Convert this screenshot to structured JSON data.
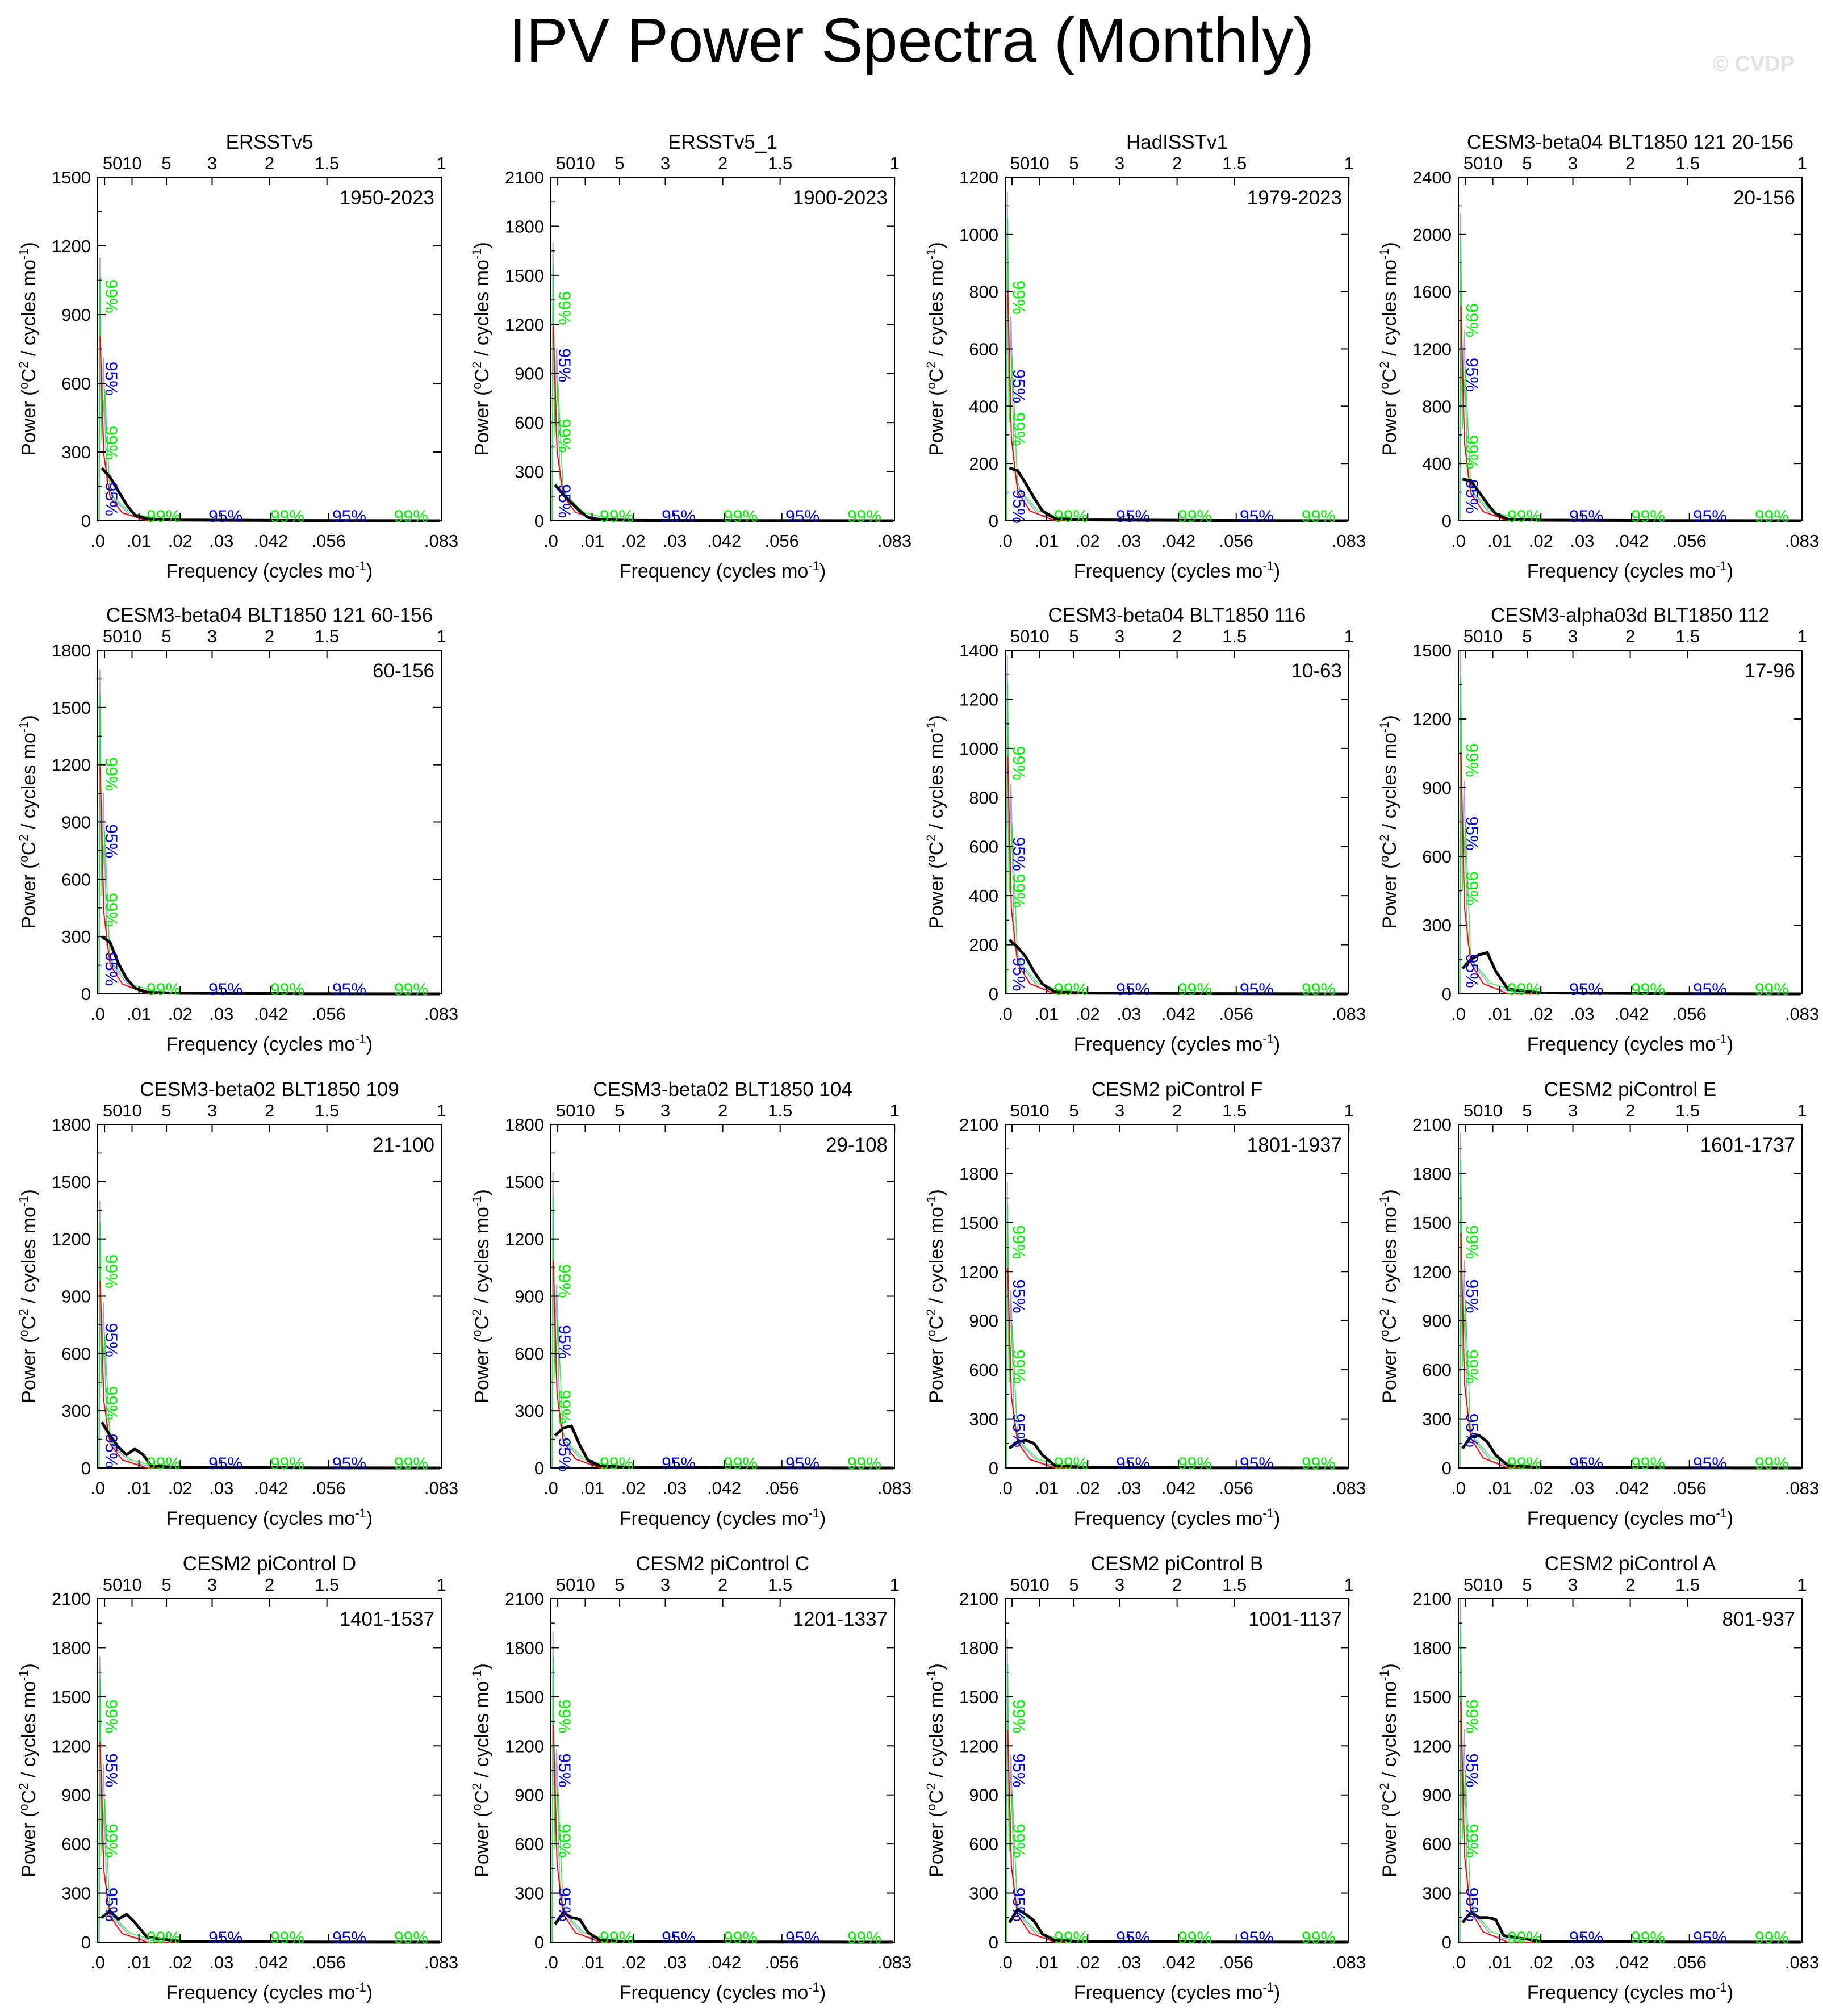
{
  "title": "IPV Power Spectra (Monthly)",
  "watermark": "© CVDP",
  "common": {
    "xlabel": "Frequency (cycles mo",
    "xlabel_sup": "-1",
    "xlabel_close": ")",
    "ylabel": "Power (",
    "ylabel_sup1": "o",
    "ylabel_mid": "C",
    "ylabel_sup2": "2",
    "ylabel_end": " / cycles mo",
    "ylabel_sup3": "-1",
    "ylabel_close": ")",
    "bottom_ticks": [
      ".0",
      ".01",
      ".02",
      ".03",
      ".042",
      ".056",
      ".083"
    ],
    "top_ticks": [
      "50",
      "10",
      "5",
      "3",
      "2",
      "1.5",
      "1"
    ],
    "label_99": "99%",
    "label_95": "95%",
    "colors": {
      "spectrum": "#000000",
      "red_noise": "#ff0000",
      "sig95": "#0000cc",
      "sig99": "#00ee00",
      "raw": "#9aa8e6"
    }
  },
  "chart_data": [
    {
      "type": "line",
      "title": "ERSSTv5",
      "period": "1950-2023",
      "ylim": [
        0,
        1500
      ],
      "yticks": [
        "0",
        "300",
        "600",
        "900",
        "1200",
        "1500"
      ],
      "peak": 1150,
      "sig95": [
        620,
        95
      ],
      "sig99": [
        980,
        340
      ],
      "spectrum": [
        [
          0.001,
          230
        ],
        [
          0.003,
          190
        ],
        [
          0.005,
          130
        ],
        [
          0.007,
          70
        ],
        [
          0.009,
          25
        ],
        [
          0.012,
          8
        ],
        [
          0.02,
          3
        ],
        [
          0.05,
          1
        ],
        [
          0.083,
          0
        ]
      ]
    },
    {
      "type": "line",
      "title": "ERSSTv5_1",
      "period": "1900-2023",
      "ylim": [
        0,
        2100
      ],
      "yticks": [
        "0",
        "300",
        "600",
        "900",
        "1200",
        "1500",
        "1800",
        "2100"
      ],
      "peak": 1700,
      "sig95": [
        950,
        120
      ],
      "sig99": [
        1300,
        520
      ],
      "spectrum": [
        [
          0.001,
          220
        ],
        [
          0.003,
          160
        ],
        [
          0.005,
          110
        ],
        [
          0.007,
          60
        ],
        [
          0.009,
          20
        ],
        [
          0.012,
          6
        ],
        [
          0.02,
          2
        ],
        [
          0.05,
          1
        ],
        [
          0.083,
          0
        ]
      ]
    },
    {
      "type": "line",
      "title": "HadISSTv1",
      "period": "1979-2023",
      "ylim": [
        0,
        1200
      ],
      "yticks": [
        "0",
        "200",
        "400",
        "600",
        "800",
        "1000",
        "1200"
      ],
      "peak": 1150,
      "sig95": [
        470,
        50
      ],
      "sig99": [
        780,
        320
      ],
      "spectrum": [
        [
          0.001,
          185
        ],
        [
          0.003,
          175
        ],
        [
          0.005,
          130
        ],
        [
          0.007,
          80
        ],
        [
          0.009,
          35
        ],
        [
          0.012,
          8
        ],
        [
          0.02,
          3
        ],
        [
          0.05,
          1
        ],
        [
          0.083,
          0
        ]
      ]
    },
    {
      "type": "line",
      "title": "CESM3-beta04 BLT1850 121 20-156",
      "period": "20-156",
      "ylim": [
        0,
        2400
      ],
      "yticks": [
        "0",
        "400",
        "800",
        "1200",
        "1600",
        "2000",
        "2400"
      ],
      "peak": 2150,
      "sig95": [
        1020,
        170
      ],
      "sig99": [
        1400,
        480
      ],
      "spectrum": [
        [
          0.001,
          290
        ],
        [
          0.003,
          280
        ],
        [
          0.005,
          200
        ],
        [
          0.007,
          120
        ],
        [
          0.009,
          50
        ],
        [
          0.012,
          10
        ],
        [
          0.02,
          4
        ],
        [
          0.05,
          1
        ],
        [
          0.083,
          0
        ]
      ]
    },
    {
      "type": "line",
      "title": "CESM3-beta04 BLT1850 121 60-156",
      "period": "60-156",
      "ylim": [
        0,
        1800
      ],
      "yticks": [
        "0",
        "300",
        "600",
        "900",
        "1200",
        "1500",
        "1800"
      ],
      "peak": 1700,
      "sig95": [
        800,
        130
      ],
      "sig99": [
        1150,
        440
      ],
      "spectrum": [
        [
          0.001,
          300
        ],
        [
          0.003,
          270
        ],
        [
          0.005,
          160
        ],
        [
          0.007,
          80
        ],
        [
          0.009,
          30
        ],
        [
          0.012,
          8
        ],
        [
          0.02,
          3
        ],
        [
          0.05,
          1
        ],
        [
          0.083,
          0
        ]
      ]
    },
    {
      "type": "line",
      "title": "CESM3-beta04 BLT1850 116",
      "period": "10-63",
      "ylim": [
        0,
        1400
      ],
      "yticks": [
        "0",
        "200",
        "400",
        "600",
        "800",
        "1000",
        "1200",
        "1400"
      ],
      "peak": 1380,
      "sig95": [
        570,
        80
      ],
      "sig99": [
        940,
        420
      ],
      "spectrum": [
        [
          0.001,
          220
        ],
        [
          0.003,
          190
        ],
        [
          0.005,
          150
        ],
        [
          0.007,
          90
        ],
        [
          0.009,
          40
        ],
        [
          0.012,
          8
        ],
        [
          0.02,
          3
        ],
        [
          0.05,
          1
        ],
        [
          0.083,
          0
        ]
      ]
    },
    {
      "type": "line",
      "title": "CESM3-alpha03d BLT1850 112",
      "period": "17-96",
      "ylim": [
        0,
        1500
      ],
      "yticks": [
        "0",
        "300",
        "600",
        "900",
        "1200",
        "1500"
      ],
      "peak": 1500,
      "sig95": [
        700,
        100
      ],
      "sig99": [
        1020,
        460
      ],
      "spectrum": [
        [
          0.001,
          110
        ],
        [
          0.003,
          150
        ],
        [
          0.005,
          170
        ],
        [
          0.007,
          180
        ],
        [
          0.009,
          100
        ],
        [
          0.012,
          20
        ],
        [
          0.02,
          4
        ],
        [
          0.05,
          1
        ],
        [
          0.083,
          0
        ]
      ]
    },
    {
      "type": "line",
      "title": "CESM3-beta02 BLT1850 109",
      "period": "21-100",
      "ylim": [
        0,
        1800
      ],
      "yticks": [
        "0",
        "300",
        "600",
        "900",
        "1200",
        "1500",
        "1800"
      ],
      "peak": 1400,
      "sig95": [
        670,
        90
      ],
      "sig99": [
        1030,
        340
      ],
      "spectrum": [
        [
          0.001,
          240
        ],
        [
          0.003,
          170
        ],
        [
          0.005,
          110
        ],
        [
          0.007,
          70
        ],
        [
          0.009,
          100
        ],
        [
          0.011,
          70
        ],
        [
          0.013,
          10
        ],
        [
          0.02,
          3
        ],
        [
          0.05,
          1
        ],
        [
          0.083,
          0
        ]
      ]
    },
    {
      "type": "line",
      "title": "CESM3-beta02 BLT1850 104",
      "period": "29-108",
      "ylim": [
        0,
        1800
      ],
      "yticks": [
        "0",
        "300",
        "600",
        "900",
        "1200",
        "1500",
        "1800"
      ],
      "peak": 1550,
      "sig95": [
        660,
        70
      ],
      "sig99": [
        980,
        320
      ],
      "spectrum": [
        [
          0.001,
          170
        ],
        [
          0.003,
          210
        ],
        [
          0.005,
          220
        ],
        [
          0.007,
          120
        ],
        [
          0.009,
          40
        ],
        [
          0.012,
          10
        ],
        [
          0.02,
          3
        ],
        [
          0.05,
          1
        ],
        [
          0.083,
          0
        ]
      ]
    },
    {
      "type": "line",
      "title": "CESM2 piControl F",
      "period": "1801-1937",
      "ylim": [
        0,
        2100
      ],
      "yticks": [
        "0",
        "300",
        "600",
        "900",
        "1200",
        "1500",
        "1800",
        "2100"
      ],
      "peak": 1750,
      "sig95": [
        1050,
        230
      ],
      "sig99": [
        1380,
        620
      ],
      "spectrum": [
        [
          0.001,
          120
        ],
        [
          0.003,
          160
        ],
        [
          0.005,
          170
        ],
        [
          0.007,
          150
        ],
        [
          0.009,
          80
        ],
        [
          0.012,
          15
        ],
        [
          0.02,
          3
        ],
        [
          0.05,
          1
        ],
        [
          0.083,
          0
        ]
      ]
    },
    {
      "type": "line",
      "title": "CESM2 piControl E",
      "period": "1601-1737",
      "ylim": [
        0,
        2100
      ],
      "yticks": [
        "0",
        "300",
        "600",
        "900",
        "1200",
        "1500",
        "1800",
        "2100"
      ],
      "peak": 2050,
      "sig95": [
        1050,
        230
      ],
      "sig99": [
        1380,
        620
      ],
      "spectrum": [
        [
          0.001,
          120
        ],
        [
          0.003,
          190
        ],
        [
          0.005,
          200
        ],
        [
          0.007,
          160
        ],
        [
          0.009,
          80
        ],
        [
          0.012,
          15
        ],
        [
          0.02,
          3
        ],
        [
          0.05,
          1
        ],
        [
          0.083,
          0
        ]
      ]
    },
    {
      "type": "line",
      "title": "CESM2 piControl D",
      "period": "1401-1537",
      "ylim": [
        0,
        2100
      ],
      "yticks": [
        "0",
        "300",
        "600",
        "900",
        "1200",
        "1500",
        "1800",
        "2100"
      ],
      "peak": 1750,
      "sig95": [
        1050,
        230
      ],
      "sig99": [
        1380,
        620
      ],
      "spectrum": [
        [
          0.001,
          150
        ],
        [
          0.003,
          190
        ],
        [
          0.005,
          140
        ],
        [
          0.007,
          170
        ],
        [
          0.009,
          120
        ],
        [
          0.012,
          30
        ],
        [
          0.02,
          5
        ],
        [
          0.05,
          1
        ],
        [
          0.083,
          0
        ]
      ]
    },
    {
      "type": "line",
      "title": "CESM2 piControl C",
      "period": "1201-1337",
      "ylim": [
        0,
        2100
      ],
      "yticks": [
        "0",
        "300",
        "600",
        "900",
        "1200",
        "1500",
        "1800",
        "2100"
      ],
      "peak": 1900,
      "sig95": [
        1050,
        230
      ],
      "sig99": [
        1380,
        620
      ],
      "spectrum": [
        [
          0.001,
          110
        ],
        [
          0.003,
          180
        ],
        [
          0.005,
          150
        ],
        [
          0.007,
          140
        ],
        [
          0.009,
          60
        ],
        [
          0.012,
          10
        ],
        [
          0.02,
          3
        ],
        [
          0.05,
          1
        ],
        [
          0.083,
          0
        ]
      ]
    },
    {
      "type": "line",
      "title": "CESM2 piControl B",
      "period": "1001-1137",
      "ylim": [
        0,
        2100
      ],
      "yticks": [
        "0",
        "300",
        "600",
        "900",
        "1200",
        "1500",
        "1800",
        "2100"
      ],
      "peak": 1850,
      "sig95": [
        1050,
        230
      ],
      "sig99": [
        1380,
        620
      ],
      "spectrum": [
        [
          0.001,
          120
        ],
        [
          0.003,
          200
        ],
        [
          0.005,
          170
        ],
        [
          0.007,
          130
        ],
        [
          0.009,
          50
        ],
        [
          0.012,
          10
        ],
        [
          0.02,
          3
        ],
        [
          0.05,
          1
        ],
        [
          0.083,
          0
        ]
      ]
    },
    {
      "type": "line",
      "title": "CESM2 piControl A",
      "period": "801-937",
      "ylim": [
        0,
        2100
      ],
      "yticks": [
        "0",
        "300",
        "600",
        "900",
        "1200",
        "1500",
        "1800",
        "2100"
      ],
      "peak": 2100,
      "sig95": [
        1050,
        230
      ],
      "sig99": [
        1380,
        620
      ],
      "spectrum": [
        [
          0.001,
          120
        ],
        [
          0.003,
          180
        ],
        [
          0.005,
          150
        ],
        [
          0.007,
          150
        ],
        [
          0.009,
          140
        ],
        [
          0.011,
          40
        ],
        [
          0.02,
          4
        ],
        [
          0.05,
          1
        ],
        [
          0.083,
          0
        ]
      ]
    }
  ]
}
